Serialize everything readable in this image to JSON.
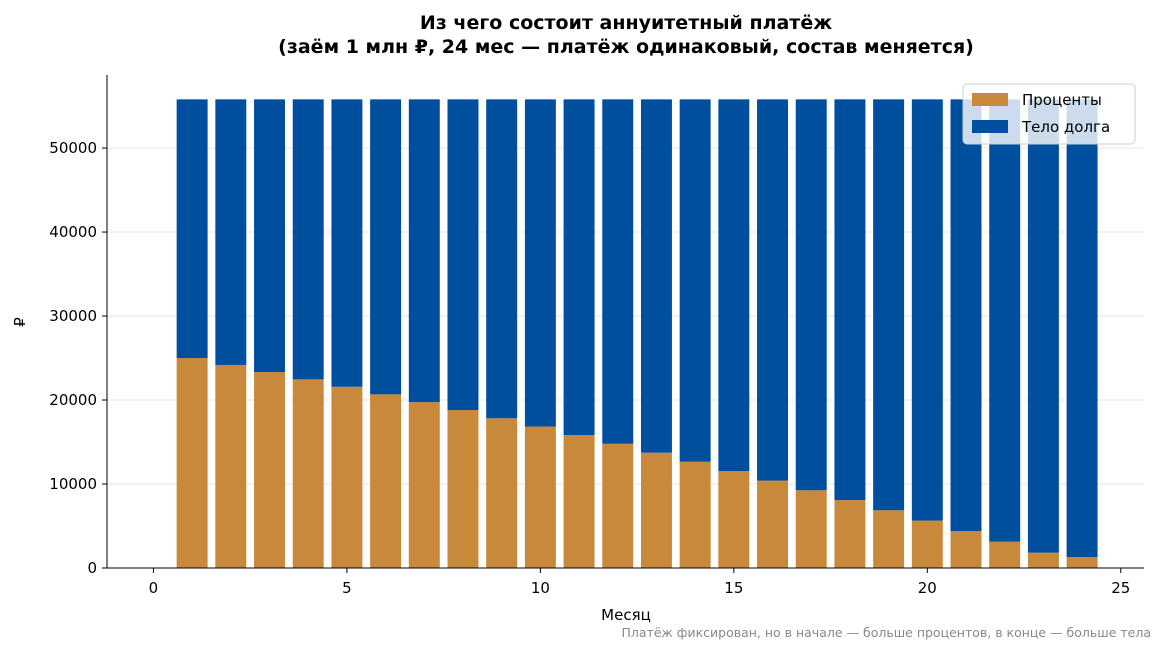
{
  "chart_data": {
    "type": "bar",
    "stacked": true,
    "title": "Из чего состоит аннуитетный платёж",
    "subtitle": "(заём 1 млн ₽, 24 мес — платёж одинаковый, состав меняется)",
    "xlabel": "Месяц",
    "ylabel": "₽",
    "footnote": "Платёж фиксирован, но в начале — больше процентов, в конце — больше тела",
    "xlim": [
      -1.2,
      25.6
    ],
    "ylim": [
      0,
      58700
    ],
    "x_ticks": [
      0,
      5,
      10,
      15,
      20,
      25
    ],
    "y_ticks": [
      0,
      10000,
      20000,
      30000,
      40000,
      50000
    ],
    "grid": "horizontal",
    "legend_position": "top-right",
    "x": [
      1,
      2,
      3,
      4,
      5,
      6,
      7,
      8,
      9,
      10,
      11,
      12,
      13,
      14,
      15,
      16,
      17,
      18,
      19,
      20,
      21,
      22,
      23,
      24
    ],
    "series": [
      {
        "name": "Проценты",
        "color": "#c8893a",
        "values": [
          25000,
          24175,
          23330,
          22465,
          21580,
          20675,
          19750,
          18800,
          17830,
          16840,
          15820,
          14790,
          13730,
          12650,
          11540,
          10410,
          9260,
          8080,
          6880,
          5650,
          4400,
          3130,
          1830,
          1300
        ]
      },
      {
        "name": "Тело долга",
        "color": "#004f9e",
        "values": [
          30800,
          31625,
          32470,
          33335,
          34220,
          35125,
          36050,
          37000,
          37970,
          38960,
          39980,
          41010,
          42070,
          43150,
          44260,
          45390,
          46540,
          47720,
          48920,
          50150,
          51400,
          52670,
          53970,
          54500
        ]
      }
    ]
  }
}
